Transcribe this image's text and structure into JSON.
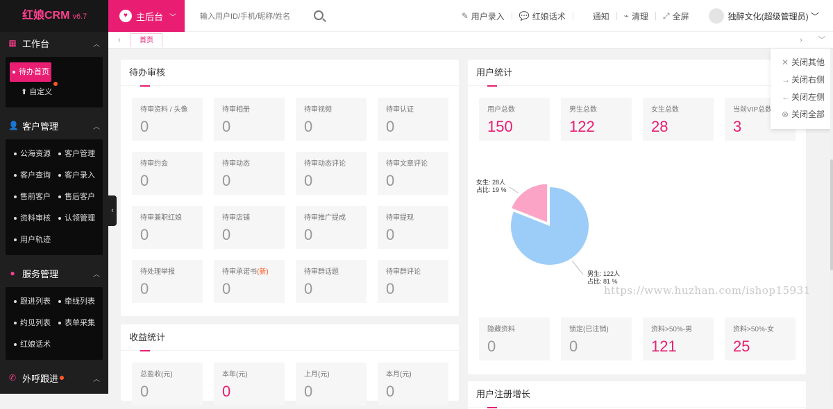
{
  "app": {
    "title": "红娘CRM",
    "version": "v6.7"
  },
  "sidebar": {
    "groups": [
      {
        "title": "工作台",
        "items": [
          {
            "label": "待办首页"
          },
          {
            "label": "自定义"
          }
        ]
      },
      {
        "title": "客户管理",
        "items": [
          {
            "label": "公海资源"
          },
          {
            "label": "客户管理"
          },
          {
            "label": "客户查询"
          },
          {
            "label": "客户录入"
          },
          {
            "label": "售前客户"
          },
          {
            "label": "售后客户"
          },
          {
            "label": "资料审核"
          },
          {
            "label": "认领管理"
          },
          {
            "label": "用户轨迹"
          }
        ]
      },
      {
        "title": "服务管理",
        "items": [
          {
            "label": "跟进列表"
          },
          {
            "label": "牵线列表"
          },
          {
            "label": "约见列表"
          },
          {
            "label": "表单采集"
          },
          {
            "label": "红娘话术"
          }
        ]
      },
      {
        "title": "外呼跟进"
      }
    ]
  },
  "header": {
    "home_label": "主后台",
    "search_placeholder": "输入用户ID/手机/昵称/姓名",
    "links": [
      "用户录入",
      "红娘话术",
      "通知",
      "清理",
      "全屏"
    ],
    "user": "独醉文化(超级管理员)"
  },
  "tabs": {
    "home": "首页"
  },
  "tab_menu": [
    "关闭其他",
    "关闭右侧",
    "关闭左侧",
    "关闭全部"
  ],
  "pending": {
    "title": "待办审核",
    "items": [
      {
        "label": "待审资料 / 头像",
        "value": "0"
      },
      {
        "label": "待审相册",
        "value": "0"
      },
      {
        "label": "待审视频",
        "value": "0"
      },
      {
        "label": "待审认证",
        "value": "0"
      },
      {
        "label": "待审约会",
        "value": "0"
      },
      {
        "label": "待审动态",
        "value": "0"
      },
      {
        "label": "待审动态评论",
        "value": "0"
      },
      {
        "label": "待审文章评论",
        "value": "0"
      },
      {
        "label": "待审兼职红娘",
        "value": "0"
      },
      {
        "label": "待审店铺",
        "value": "0"
      },
      {
        "label": "待审推广提成",
        "value": "0"
      },
      {
        "label": "待审提现",
        "value": "0"
      },
      {
        "label": "待处理举报",
        "value": "0"
      },
      {
        "label": "待审承诺书",
        "badge": "(新)",
        "value": "0"
      },
      {
        "label": "待审群话题",
        "value": "0"
      },
      {
        "label": "待审群评论",
        "value": "0"
      }
    ]
  },
  "income": {
    "title": "收益统计",
    "items": [
      {
        "label": "总盈收(元)",
        "value": "0"
      },
      {
        "label": "本年(元)",
        "value": "0"
      },
      {
        "label": "上月(元)",
        "value": "0"
      },
      {
        "label": "本月(元)",
        "value": "0"
      }
    ]
  },
  "user_stats": {
    "title": "用户统计",
    "top": [
      {
        "label": "用户总数",
        "value": "150"
      },
      {
        "label": "男生总数",
        "value": "122"
      },
      {
        "label": "女生总数",
        "value": "28"
      },
      {
        "label": "当前VIP总数",
        "value": "3"
      }
    ],
    "bottom": [
      {
        "label": "隐藏资料",
        "value": "0",
        "pink": false
      },
      {
        "label": "锁定(已注销)",
        "value": "0",
        "pink": false
      },
      {
        "label": "资料>50%-男",
        "value": "121",
        "pink": true
      },
      {
        "label": "资料>50%-女",
        "value": "25",
        "pink": true
      }
    ]
  },
  "chart_data": {
    "type": "pie",
    "slices": [
      {
        "name": "女生",
        "count": "28人",
        "percent": 19,
        "percent_label": "19 %",
        "color": "#fca4c6"
      },
      {
        "name": "男生",
        "count": "122人",
        "percent": 81,
        "percent_label": "81 %",
        "color": "#9ccdf9"
      }
    ],
    "label_prefix_ratio": "占比:"
  },
  "growth": {
    "title": "用户注册增长"
  },
  "watermark": "https://www.huzhan.com/ishop15931",
  "colors": {
    "accent": "#e91e73",
    "sidebar": "#1f1f1f"
  }
}
